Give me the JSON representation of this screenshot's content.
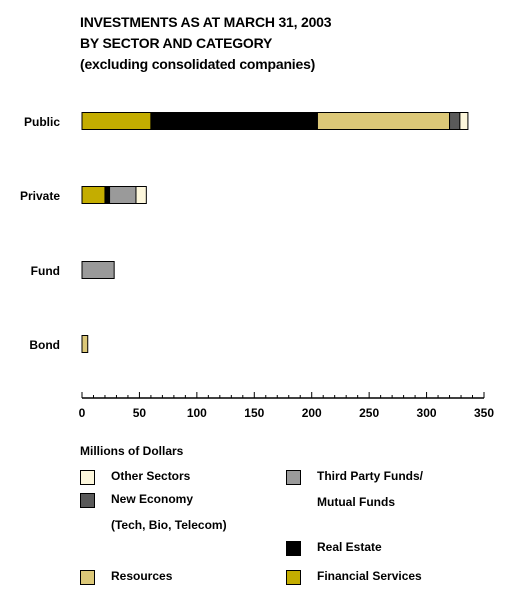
{
  "title_lines": [
    "INVESTMENTS AS AT MARCH 31, 2003",
    "BY SECTOR AND CATEGORY",
    "(excluding consolidated companies)"
  ],
  "chart_data": {
    "type": "bar",
    "orientation": "horizontal",
    "stacked": true,
    "categories": [
      "Public",
      "Private",
      "Fund",
      "Bond"
    ],
    "series": [
      {
        "name": "Financial Services",
        "color": "#c4ad00",
        "values": [
          60,
          20,
          0,
          0
        ]
      },
      {
        "name": "Real Estate",
        "color": "#000000",
        "values": [
          145,
          4,
          0,
          0
        ]
      },
      {
        "name": "Resources",
        "color": "#dcc878",
        "values": [
          115,
          0,
          0,
          5
        ]
      },
      {
        "name": "New Economy (Tech, Bio, Telecom)",
        "color": "#5a5a5a",
        "values": [
          9,
          0,
          0,
          0
        ]
      },
      {
        "name": "Third Party Funds/ Mutual Funds",
        "color": "#9a9a9a",
        "values": [
          0,
          23,
          28,
          0
        ]
      },
      {
        "name": "Other Sectors",
        "color": "#fdf7dc",
        "values": [
          7,
          9,
          0,
          0
        ]
      }
    ],
    "xlim": [
      0,
      350
    ],
    "xticks": [
      "0",
      "50",
      "100",
      "150",
      "200",
      "250",
      "300",
      "350"
    ],
    "xtick_values": [
      0,
      50,
      100,
      150,
      200,
      250,
      300,
      350
    ],
    "xlabel": "Millions of Dollars",
    "grid": false,
    "legend_position": "bottom"
  },
  "legend": [
    {
      "label_lines": [
        "Other Sectors"
      ],
      "color": "#fdf7dc",
      "icon": "swatch"
    },
    {
      "label_lines": [
        "New Economy",
        "(Tech, Bio, Telecom)"
      ],
      "color": "#5a5a5a",
      "icon": "swatch"
    },
    {
      "label_lines": [
        "Resources"
      ],
      "color": "#dcc878",
      "icon": "swatch"
    },
    {
      "label_lines": [
        "Third Party Funds/",
        "Mutual Funds"
      ],
      "color": "#9a9a9a",
      "icon": "swatch"
    },
    {
      "label_lines": [
        "Real Estate"
      ],
      "color": "#000000",
      "icon": "swatch"
    },
    {
      "label_lines": [
        "Financial Services"
      ],
      "color": "#c4ad00",
      "icon": "swatch"
    }
  ]
}
